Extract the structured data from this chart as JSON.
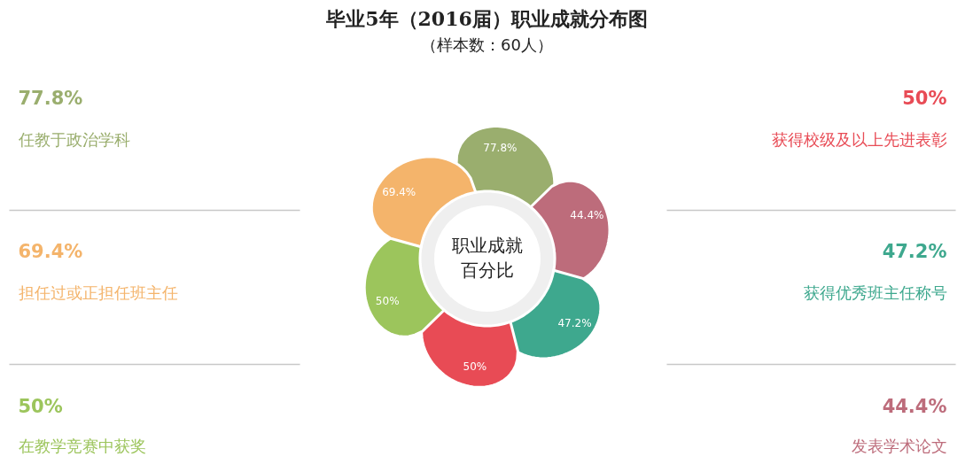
{
  "chart_data": {
    "type": "other",
    "title": "毕业5年（2016届）职业成就分布图",
    "subtitle": "（样本数：60人）",
    "categories": [
      "任教于政治学科",
      "发表学术论文",
      "获得优秀班主任称号",
      "获得校级及以上先进表彰",
      "在教学竞赛中获奖",
      "担任过或正担任班主任"
    ],
    "values": [
      77.8,
      44.4,
      47.2,
      50,
      50,
      69.4
    ],
    "value_labels": [
      "77.8%",
      "44.4%",
      "47.2%",
      "50%",
      "50%",
      "69.4%"
    ],
    "colors": [
      "#9aae6e",
      "#bd6c7b",
      "#3ea88e",
      "#e84b55",
      "#9cc55c",
      "#f4b46b"
    ],
    "annotations": [
      "职业成就百分比"
    ]
  }
}
